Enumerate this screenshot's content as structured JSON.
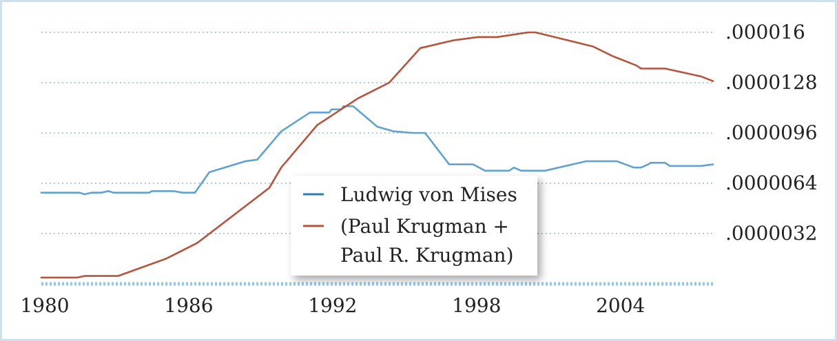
{
  "chart_data": {
    "type": "line",
    "title": "",
    "xlabel": "",
    "ylabel": "",
    "xlim": [
      1980,
      2008
    ],
    "ylim": [
      0,
      1.6e-05
    ],
    "x_ticks": [
      "1980",
      "1986",
      "1992",
      "1998",
      "2004"
    ],
    "x_tick_values": [
      1980,
      1986,
      1992,
      1998,
      2004
    ],
    "y_ticks": [
      ".0000032",
      ".0000064",
      ".0000096",
      ".0000128",
      ".000016"
    ],
    "y_tick_values": [
      3.2e-06,
      6.4e-06,
      9.6e-06,
      1.28e-05,
      1.6e-05
    ],
    "grid": true,
    "legend_position": "center",
    "series": [
      {
        "name": "Ludwig von Mises",
        "color": "#5fa2cf",
        "x": [
          1980,
          1981.6,
          1981.8,
          1982.1,
          1982.5,
          1982.8,
          1983.0,
          1983.2,
          1984.5,
          1984.6,
          1985.5,
          1985.9,
          1986.0,
          1986.4,
          1987.0,
          1988.5,
          1989.0,
          1990.0,
          1991.2,
          1992.0,
          1992.1,
          1992.5,
          1992.6,
          1993.0,
          1994.0,
          1994.7,
          1995.5,
          1996.0,
          1997.0,
          1998.0,
          1998.5,
          1999.5,
          1999.7,
          2000.0,
          2001.0,
          2002.7,
          2003.0,
          2004.0,
          2004.7,
          2005.0,
          2005.3,
          2005.4,
          2006.0,
          2006.2,
          2007.0,
          2007.5,
          2008.0
        ],
        "y": [
          5.8e-06,
          5.8e-06,
          5.7e-06,
          5.8e-06,
          5.8e-06,
          5.9e-06,
          5.8e-06,
          5.8e-06,
          5.8e-06,
          5.9e-06,
          5.9e-06,
          5.8e-06,
          5.8e-06,
          5.8e-06,
          7.1e-06,
          7.8e-06,
          7.9e-06,
          9.7e-06,
          1.09e-05,
          1.09e-05,
          1.11e-05,
          1.11e-05,
          1.13e-05,
          1.13e-05,
          1e-05,
          9.7e-06,
          9.6e-06,
          9.6e-06,
          7.6e-06,
          7.6e-06,
          7.2e-06,
          7.2e-06,
          7.4e-06,
          7.2e-06,
          7.2e-06,
          7.8e-06,
          7.8e-06,
          7.8e-06,
          7.4e-06,
          7.4e-06,
          7.6e-06,
          7.7e-06,
          7.7e-06,
          7.5e-06,
          7.5e-06,
          7.5e-06,
          7.6e-06
        ]
      },
      {
        "name": "(Paul Krugman + Paul R. Krugman)",
        "color": "#b5533c",
        "x": [
          1980,
          1981.5,
          1981.8,
          1983.2,
          1985.2,
          1986.5,
          1989.5,
          1990.0,
          1991.5,
          1993.2,
          1994.5,
          1995.8,
          1997.2,
          1998.2,
          1999.0,
          2000.3,
          2000.6,
          2003.0,
          2003.8,
          2004.8,
          2005.0,
          2006.0,
          2007.5,
          2008.0
        ],
        "y": [
          4e-07,
          4e-07,
          5e-07,
          5e-07,
          1.6e-06,
          2.6e-06,
          6.1e-06,
          7.4e-06,
          1.01e-05,
          1.18e-05,
          1.28e-05,
          1.5e-05,
          1.55e-05,
          1.57e-05,
          1.57e-05,
          1.6e-05,
          1.6e-05,
          1.51e-05,
          1.45e-05,
          1.39e-05,
          1.37e-05,
          1.37e-05,
          1.32e-05,
          1.29e-05
        ]
      }
    ]
  },
  "legend": {
    "items": [
      {
        "label_lines": [
          "Ludwig von Mises"
        ],
        "color": "#2d7db3"
      },
      {
        "label_lines": [
          "(Paul Krugman +",
          "Paul R. Krugman)"
        ],
        "color": "#b5533c"
      }
    ]
  }
}
